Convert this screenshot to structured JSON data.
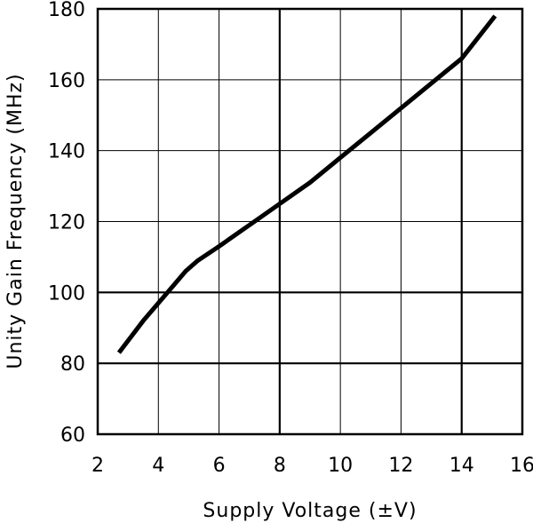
{
  "chart_data": {
    "type": "line",
    "title": "",
    "xlabel": "Supply Voltage (±V)",
    "ylabel": "Unity Gain Frequency (MHz)",
    "xlim": [
      2,
      16
    ],
    "ylim": [
      60,
      180
    ],
    "xticks": [
      2,
      4,
      6,
      8,
      10,
      12,
      14,
      16
    ],
    "yticks": [
      60,
      80,
      100,
      120,
      140,
      160,
      180
    ],
    "x_tick_labels": [
      "2",
      "4",
      "6",
      "8",
      "10",
      "12",
      "14",
      "16"
    ],
    "y_tick_labels": [
      "60",
      "80",
      "100",
      "120",
      "140",
      "160",
      "180"
    ],
    "grid": true,
    "legend": "none",
    "series": [
      {
        "x": [
          2.7,
          3.5,
          4.5,
          4.9,
          5.3,
          6.0,
          7.0,
          8.0,
          9.0,
          10.0,
          11.0,
          12.0,
          13.0,
          14.0,
          15.1
        ],
        "y": [
          83,
          92,
          102,
          106,
          109,
          113,
          119,
          125,
          131,
          138,
          145,
          152,
          159,
          166,
          178
        ]
      }
    ]
  }
}
